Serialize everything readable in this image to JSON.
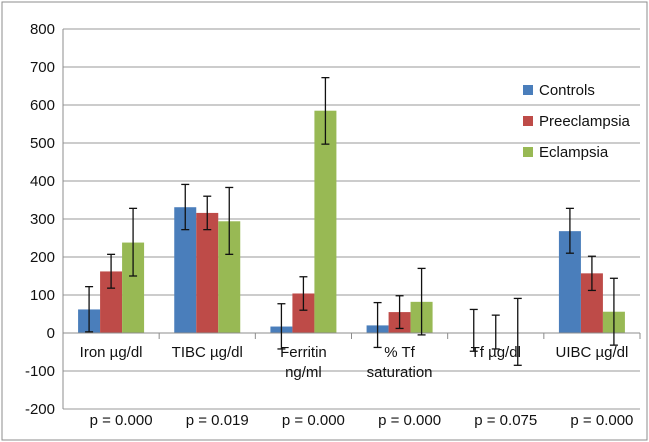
{
  "chart_data": {
    "type": "bar",
    "categories": [
      [
        "Iron µg/dl"
      ],
      [
        "TIBC µg/dl"
      ],
      [
        "Ferritin",
        "ng/ml"
      ],
      [
        "% Tf",
        "saturation"
      ],
      [
        "Tf µg/dl"
      ],
      [
        "UIBC µg/dl"
      ]
    ],
    "p_values": [
      "p = 0.000",
      "p = 0.019",
      "p = 0.000",
      "p = 0.000",
      "p = 0.075",
      "p = 0.000"
    ],
    "ylim": [
      -200,
      800
    ],
    "yticks": [
      -200,
      -100,
      0,
      100,
      200,
      300,
      400,
      500,
      600,
      700,
      800
    ],
    "grid": true,
    "legend_position": "right",
    "series": [
      {
        "name": "Controls",
        "color": "#4a7ebb",
        "values": [
          62,
          331,
          17,
          20,
          0,
          268
        ],
        "err_low": [
          3,
          272,
          -42,
          -38,
          -48,
          210
        ],
        "err_high": [
          122,
          391,
          77,
          80,
          62,
          328
        ]
      },
      {
        "name": "Preeclampsia",
        "color": "#be4b48",
        "values": [
          162,
          316,
          104,
          55,
          0,
          157
        ],
        "err_low": [
          118,
          272,
          60,
          12,
          -42,
          112
        ],
        "err_high": [
          207,
          360,
          148,
          98,
          47,
          202
        ]
      },
      {
        "name": "Eclampsia",
        "color": "#98b954",
        "values": [
          238,
          294,
          585,
          82,
          0,
          56
        ],
        "err_low": [
          150,
          207,
          497,
          -5,
          -85,
          -32
        ],
        "err_high": [
          328,
          383,
          672,
          170,
          91,
          144
        ]
      }
    ]
  }
}
